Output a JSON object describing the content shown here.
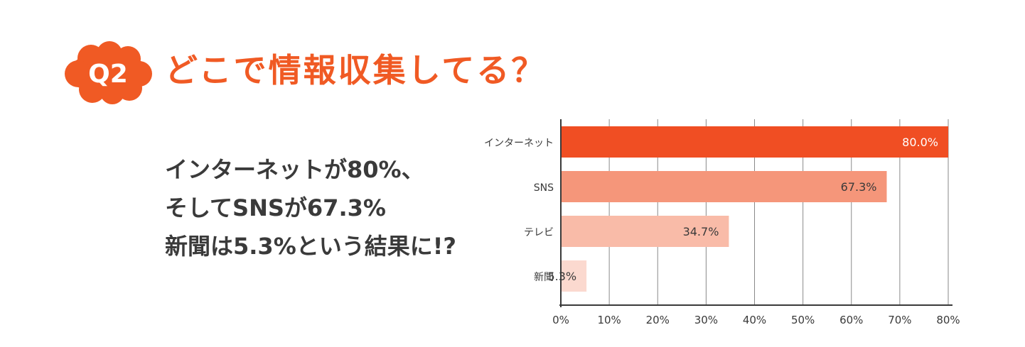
{
  "header": {
    "badge": "Q2",
    "title": "どこで情報収集してる？"
  },
  "summary": {
    "lines": [
      "インターネットが80%、",
      "そしてSNSが67.3%",
      "新聞は5.3%という結果に!?"
    ]
  },
  "colors": {
    "accent": "#f05a24",
    "text": "#3a3a3a",
    "bars": [
      "#f04e23",
      "#f5967a",
      "#f9bba8",
      "#fbd9cf"
    ]
  },
  "chart_data": {
    "type": "bar",
    "orientation": "horizontal",
    "categories": [
      "インターネット",
      "SNS",
      "テレビ",
      "新聞"
    ],
    "values": [
      80.0,
      67.3,
      34.7,
      5.3
    ],
    "value_labels": [
      "80.0%",
      "67.3%",
      "34.7%",
      "5.3%"
    ],
    "xlim": [
      0,
      80
    ],
    "xticks": [
      "0%",
      "10%",
      "20%",
      "30%",
      "40%",
      "50%",
      "60%",
      "70%",
      "80%"
    ],
    "grid": true
  }
}
